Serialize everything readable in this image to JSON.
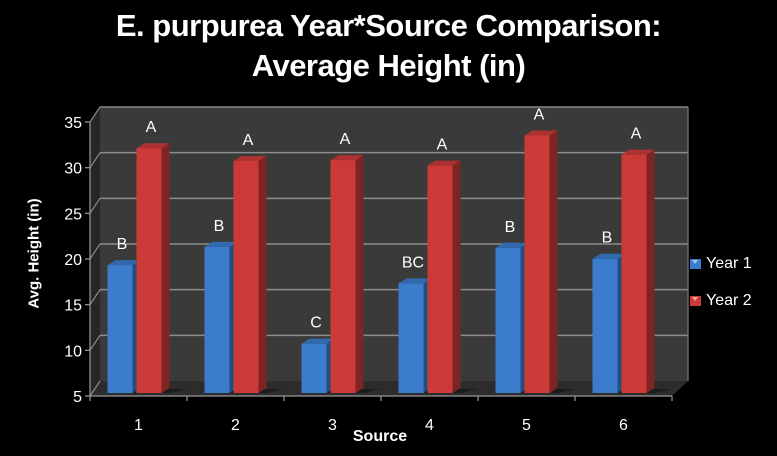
{
  "chart_data": {
    "type": "bar",
    "style": "3d-clustered-column",
    "title": "E. purpurea Year*Source Comparison: Average Height (in)",
    "title_lines": [
      "E. purpurea Year*Source Comparison:",
      "Average Height (in)"
    ],
    "xlabel": "Source",
    "ylabel": "Avg. Height (in)",
    "categories": [
      "1",
      "2",
      "3",
      "4",
      "5",
      "6"
    ],
    "series": [
      {
        "name": "Year 1",
        "color": "#3b7ccc",
        "values": [
          19.0,
          21.0,
          10.4,
          17.0,
          20.9,
          19.7
        ],
        "letters": [
          "B",
          "B",
          "C",
          "BC",
          "B",
          "B"
        ]
      },
      {
        "name": "Year 2",
        "color": "#cc3a38",
        "values": [
          31.8,
          30.4,
          30.5,
          29.9,
          33.2,
          31.1
        ],
        "letters": [
          "A",
          "A",
          "A",
          "A",
          "A",
          "A"
        ]
      }
    ],
    "ylim": [
      5,
      35
    ],
    "yticks": [
      5,
      10,
      15,
      20,
      25,
      30,
      35
    ],
    "grid": true,
    "legend_position": "right",
    "background": "#000000",
    "wall_color": "#3a3a3a"
  }
}
